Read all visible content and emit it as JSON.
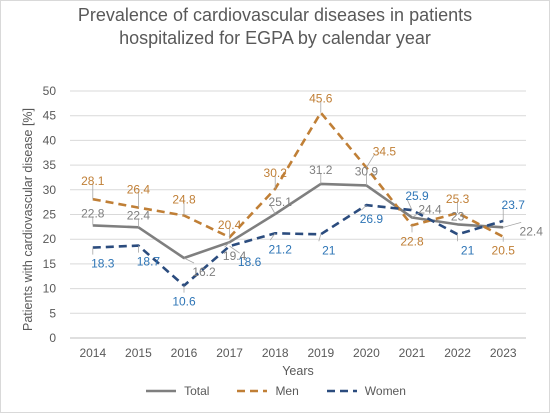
{
  "chart_data": {
    "type": "line",
    "title_lines": [
      "Prevalence of cardiovascular diseases in patients",
      "hospitalized for EGPA by calendar year"
    ],
    "xlabel": "Years",
    "ylabel": "Patients with cardiovascular disease [%]",
    "ylim": [
      0,
      50
    ],
    "yticks": [
      "0",
      "5",
      "10",
      "15",
      "20",
      "25",
      "30",
      "35",
      "40",
      "45",
      "50"
    ],
    "categories": [
      "2014",
      "2015",
      "2016",
      "2017",
      "2018",
      "2019",
      "2020",
      "2021",
      "2022",
      "2023"
    ],
    "grid": true,
    "legend": "bottom",
    "series": [
      {
        "name": "Total",
        "color": "#7f7f7f",
        "dash": "solid",
        "values": [
          22.8,
          22.4,
          16.2,
          19.4,
          25.1,
          31.2,
          30.9,
          24.4,
          23.0,
          22.4
        ],
        "labels": [
          "22.8",
          "22.4",
          "16.2",
          "19.4",
          "25.1",
          "31.2",
          "30.9",
          "24.4",
          "23",
          "22.4"
        ]
      },
      {
        "name": "Men",
        "color": "#c07f36",
        "dash": "dashed",
        "values": [
          28.1,
          26.4,
          24.8,
          20.4,
          30.2,
          45.6,
          34.5,
          22.8,
          25.3,
          20.5
        ],
        "labels": [
          "28.1",
          "26.4",
          "24.8",
          "20.4",
          "30.2",
          "45.6",
          "34.5",
          "22.8",
          "25.3",
          "20.5"
        ]
      },
      {
        "name": "Women",
        "color": "#2b4c7e",
        "label_color": "#2e75b6",
        "dash": "dashed",
        "values": [
          18.3,
          18.7,
          10.6,
          18.6,
          21.2,
          21.0,
          26.9,
          25.9,
          21.0,
          23.7
        ],
        "labels": [
          "18.3",
          "18.7",
          "10.6",
          "18.6",
          "21.2",
          "21",
          "26.9",
          "25.9",
          "21",
          "23.7"
        ]
      }
    ]
  }
}
